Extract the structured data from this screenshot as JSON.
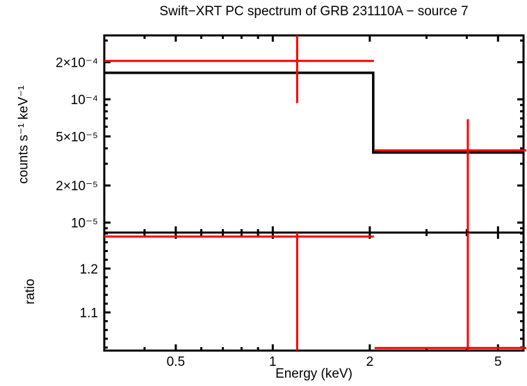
{
  "title": "Swift−XRT PC spectrum of GRB 231110A − source 7",
  "colors": {
    "background": "#ffffff",
    "frame": "#000000",
    "model": "#000000",
    "data": "#ff0000"
  },
  "chart_data": [
    {
      "id": "spectrum",
      "type": "line",
      "title": "Swift−XRT PC spectrum of GRB 231110A − source 7",
      "ylabel": "counts s⁻¹ keV⁻¹",
      "xscale": "log",
      "yscale": "log",
      "xlim": [
        0.3,
        6.0
      ],
      "ylim": [
        8.3e-06,
        0.00033
      ],
      "grid": false,
      "legend": false,
      "x_ticks_major": [
        {
          "value": 0.5,
          "label": "0.5"
        },
        {
          "value": 1,
          "label": "1"
        },
        {
          "value": 2,
          "label": "2"
        },
        {
          "value": 5,
          "label": "5"
        }
      ],
      "x_ticks_minor": [
        0.4,
        0.6,
        0.7,
        0.8,
        0.9,
        3,
        4,
        6
      ],
      "y_ticks_major": [
        {
          "value": 0.0002,
          "label": "2×10⁻⁴"
        },
        {
          "value": 0.0001,
          "label": "10⁻⁴"
        },
        {
          "value": 5e-05,
          "label": "5×10⁻⁵"
        },
        {
          "value": 2e-05,
          "label": "2×10⁻⁵"
        },
        {
          "value": 1e-05,
          "label": "10⁻⁵"
        }
      ],
      "y_ticks_minor": [
        0.0003,
        9e-05,
        8e-05,
        7e-05,
        6e-05,
        4e-05,
        3e-05,
        9e-06
      ],
      "x_tick_labels_visible": false,
      "model_segments": [
        {
          "x_from": 0.3,
          "x_to": 2.05,
          "value": 0.000164
        },
        {
          "x_from": 2.05,
          "x_to": 6.0,
          "value": 3.7e-05
        }
      ],
      "data_points": [
        {
          "x_from": 0.3,
          "x_to": 2.06,
          "x_center": 1.19,
          "value": 0.000205,
          "err_low": 9.3e-05,
          "err_high": 0.00033,
          "err_high_clipped": true
        },
        {
          "x_from": 2.07,
          "x_to": 6.0,
          "x_center": 4.03,
          "value": 3.85e-05,
          "err_low": 8.3e-06,
          "err_high": 6.9e-05,
          "err_low_clipped": true,
          "x_to_clipped": true
        }
      ]
    },
    {
      "id": "ratio",
      "type": "line",
      "xlabel": "Energy (keV)",
      "ylabel": "ratio",
      "xscale": "log",
      "yscale": "linear",
      "xlim": [
        0.3,
        6.0
      ],
      "ylim": [
        1.013,
        1.282
      ],
      "grid": false,
      "legend": false,
      "x_ticks_major": [
        {
          "value": 0.5,
          "label": "0.5"
        },
        {
          "value": 1,
          "label": "1"
        },
        {
          "value": 2,
          "label": "2"
        },
        {
          "value": 5,
          "label": "5"
        }
      ],
      "x_ticks_minor": [
        0.4,
        0.6,
        0.7,
        0.8,
        0.9,
        3,
        4,
        6
      ],
      "y_ticks_major": [
        {
          "value": 1.2,
          "label": "1.2"
        },
        {
          "value": 1.1,
          "label": "1.1"
        }
      ],
      "y_ticks_minor": [
        1.02,
        1.04,
        1.06,
        1.08,
        1.12,
        1.14,
        1.16,
        1.18,
        1.22,
        1.24,
        1.26,
        1.28
      ],
      "x_tick_labels_visible": true,
      "model_segments": [],
      "data_points": [
        {
          "x_from": 0.3,
          "x_to": 2.06,
          "x_center": 1.19,
          "value": 1.273,
          "err_low": 1.013,
          "err_high": 1.282,
          "err_low_clipped": true,
          "err_high_clipped": true
        },
        {
          "x_from": 2.07,
          "x_to": 6.0,
          "x_center": 4.03,
          "value": 1.019,
          "err_low": 1.013,
          "err_high": 1.282,
          "err_low_clipped": true,
          "err_high_clipped": true,
          "x_to_clipped": true
        }
      ]
    }
  ]
}
